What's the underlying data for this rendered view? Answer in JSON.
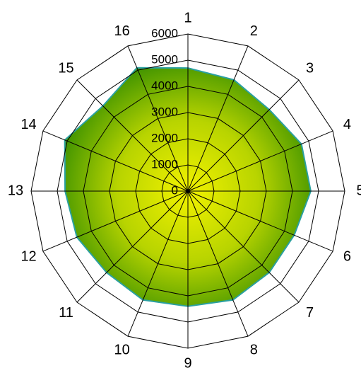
{
  "chart_data": {
    "type": "radar",
    "categories": [
      "1",
      "2",
      "3",
      "4",
      "5",
      "6",
      "7",
      "8",
      "9",
      "10",
      "11",
      "12",
      "13",
      "14",
      "15",
      "16"
    ],
    "values": [
      4700,
      4600,
      4400,
      4700,
      4700,
      4400,
      4400,
      4500,
      4400,
      4500,
      4400,
      4600,
      4700,
      5100,
      4600,
      5100
    ],
    "rlim": [
      0,
      6000
    ],
    "rticks": [
      0,
      1000,
      2000,
      3000,
      4000,
      5000,
      6000
    ],
    "grid": true,
    "color": "#2aa0a0"
  }
}
